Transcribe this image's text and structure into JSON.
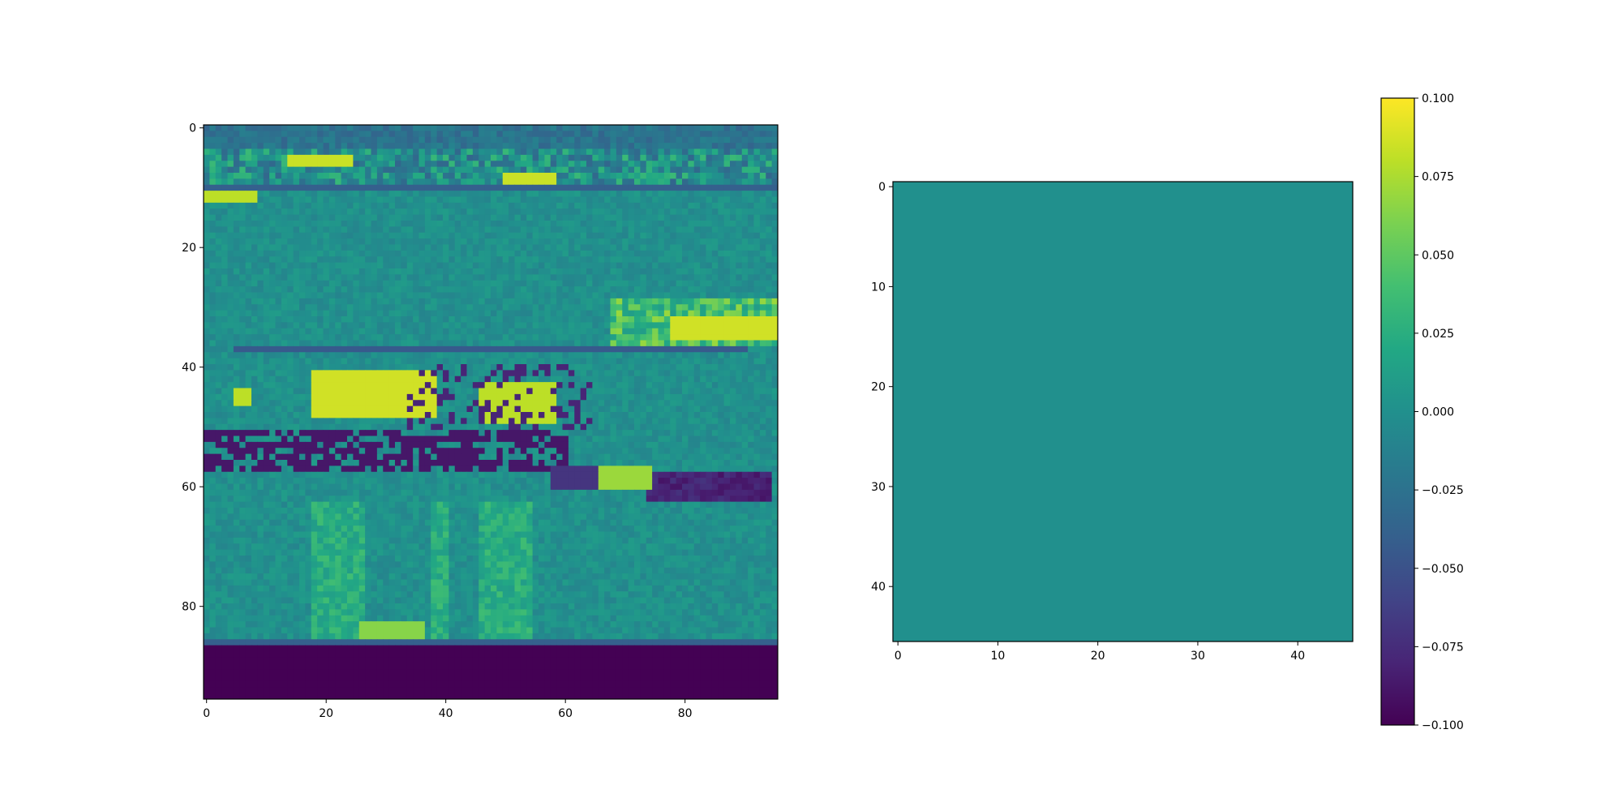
{
  "chart_data": [
    {
      "type": "heatmap",
      "title": "",
      "xlabel": "",
      "ylabel": "",
      "image_size": [
        96,
        96
      ],
      "xlim": [
        -0.5,
        95.5
      ],
      "ylim": [
        95.5,
        -0.5
      ],
      "x_ticks": [
        0,
        20,
        40,
        60,
        80
      ],
      "y_ticks": [
        0,
        20,
        40,
        60,
        80
      ],
      "x_tick_labels": [
        "0",
        "20",
        "40",
        "60",
        "80"
      ],
      "y_tick_labels": [
        "0",
        "20",
        "40",
        "60",
        "80"
      ],
      "value_range": [
        -0.1,
        0.1
      ],
      "colormap": "viridis",
      "content": "grayscale-like photograph rendered with viridis colormap; bottom rows 87-95 at minimum value"
    },
    {
      "type": "heatmap",
      "title": "",
      "xlabel": "",
      "ylabel": "",
      "image_size": [
        46,
        46
      ],
      "xlim": [
        -0.5,
        45.5
      ],
      "ylim": [
        45.5,
        -0.5
      ],
      "x_ticks": [
        0,
        10,
        20,
        30,
        40
      ],
      "y_ticks": [
        0,
        10,
        20,
        30,
        40
      ],
      "x_tick_labels": [
        "0",
        "10",
        "20",
        "30",
        "40"
      ],
      "y_tick_labels": [
        "0",
        "10",
        "20",
        "30",
        "40"
      ],
      "uniform_value": 0.0,
      "colormap": "viridis",
      "colorbar": {
        "vmin": -0.1,
        "vmax": 0.1,
        "ticks": [
          0.1,
          0.075,
          0.05,
          0.025,
          0.0,
          -0.025,
          -0.05,
          -0.075,
          -0.1
        ],
        "tick_labels": [
          "0.100",
          "0.075",
          "0.050",
          "0.025",
          "0.000",
          "−0.025",
          "−0.050",
          "−0.075",
          "−0.100"
        ]
      }
    }
  ]
}
